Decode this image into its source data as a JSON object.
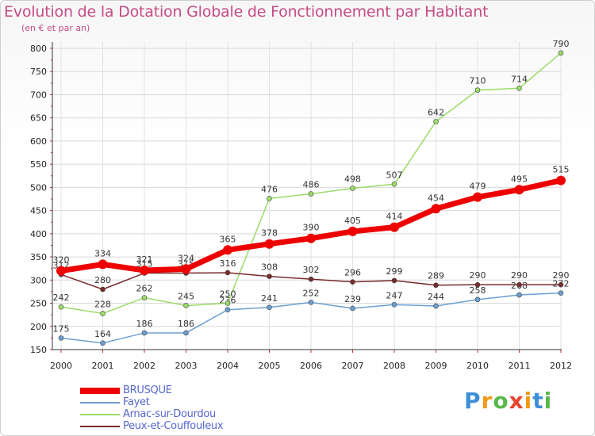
{
  "title": "Evolution de la Dotation Globale de Fonctionnement par Habitant",
  "subtitle": "(en € et par an)",
  "logo": {
    "text": "Proxiti",
    "letters": [
      {
        "ch": "P",
        "color": "#3d8fd8"
      },
      {
        "ch": "r",
        "color": "#f29a18"
      },
      {
        "ch": "o",
        "color": "#59b84c"
      },
      {
        "ch": "x",
        "color": "#e5442f"
      },
      {
        "ch": "i",
        "color": "#f29a18"
      },
      {
        "ch": "t",
        "color": "#3d8fd8"
      },
      {
        "ch": "i",
        "color": "#59b84c"
      }
    ]
  },
  "chart_data": {
    "type": "line",
    "title": "Evolution de la Dotation Globale de Fonctionnement par Habitant",
    "ylabel": "(en € et par an)",
    "xlabel": "",
    "categories": [
      "2000",
      "2001",
      "2002",
      "2003",
      "2004",
      "2005",
      "2006",
      "2007",
      "2008",
      "2009",
      "2010",
      "2011",
      "2012"
    ],
    "ylim": [
      150,
      800
    ],
    "yticks": [
      150,
      200,
      250,
      300,
      350,
      400,
      450,
      500,
      550,
      600,
      650,
      700,
      750,
      800
    ],
    "grid": true,
    "legend_position": "bottom-left",
    "series": [
      {
        "name": "Fayet",
        "color": "#6b9fd0",
        "values": [
          175,
          164,
          186,
          186,
          236,
          241,
          252,
          239,
          247,
          244,
          258,
          268,
          272
        ]
      },
      {
        "name": "Arnac-sur-Dourdou",
        "color": "#9bdb6a",
        "values": [
          242,
          228,
          262,
          245,
          250,
          476,
          486,
          498,
          507,
          642,
          710,
          714,
          790
        ]
      },
      {
        "name": "Peux-et-Couffouleux",
        "color": "#7a2a2a",
        "values": [
          312,
          280,
          315,
          315,
          316,
          308,
          302,
          296,
          299,
          289,
          290,
          290,
          290
        ]
      },
      {
        "name": "BRUSQUE",
        "color": "#ee0000",
        "values": [
          320,
          334,
          321,
          324,
          365,
          378,
          390,
          405,
          414,
          454,
          479,
          495,
          515
        ]
      }
    ],
    "legend_order": [
      "BRUSQUE",
      "Fayet",
      "Arnac-sur-Dourdou",
      "Peux-et-Couffouleux"
    ]
  }
}
